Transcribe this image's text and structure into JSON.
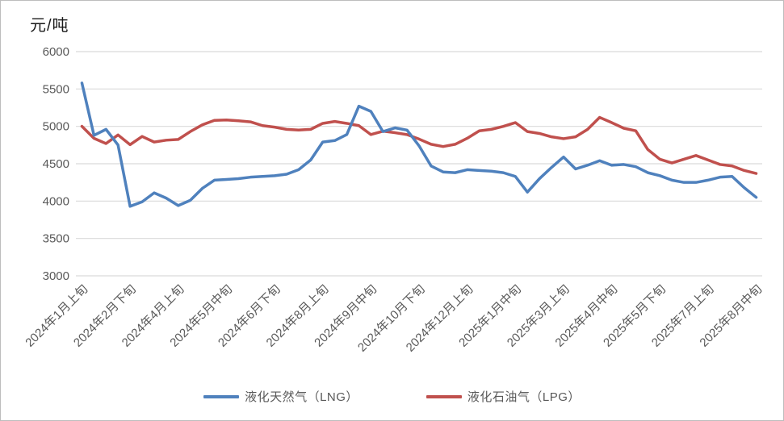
{
  "chart_data": {
    "type": "line",
    "title": "",
    "unit_label": "元/吨",
    "grid": true,
    "legend_position": "bottom",
    "ylim": [
      3000,
      6000
    ],
    "ytick_step": 500,
    "y_tick_labels": [
      "6000",
      "5500",
      "5000",
      "4500",
      "4000",
      "3500",
      "3000"
    ],
    "x_tick_every": 4,
    "x_tick_labels": [
      "2024年1月上旬",
      "2024年2月下旬",
      "2024年4月上旬",
      "2024年5月中旬",
      "2024年6月下旬",
      "2024年8月上旬",
      "2024年9月中旬",
      "2024年10月下旬",
      "2024年12月上旬",
      "2025年1月中旬",
      "2025年3月上旬",
      "2025年4月中旬",
      "2025年5月下旬",
      "2025年7月上旬",
      "2025年8月中旬"
    ],
    "colors": {
      "gridline": "#D9D9D9",
      "axis_text": "#595959",
      "lng_blue": "#4F81BD",
      "lpg_red": "#C0504D"
    },
    "series": [
      {
        "id": "lng",
        "name": "液化天然气（LNG）",
        "color": "#4F81BD",
        "values": [
          5580,
          4880,
          4960,
          4750,
          3930,
          3990,
          4110,
          4040,
          3940,
          4010,
          4170,
          4280,
          4290,
          4300,
          4320,
          4330,
          4340,
          4360,
          4420,
          4550,
          4790,
          4810,
          4890,
          5270,
          5200,
          4930,
          4980,
          4950,
          4740,
          4470,
          4390,
          4380,
          4420,
          4410,
          4400,
          4380,
          4330,
          4120,
          4300,
          4450,
          4590,
          4430,
          4480,
          4540,
          4480,
          4490,
          4460,
          4380,
          4340,
          4280,
          4250,
          4250,
          4280,
          4320,
          4330,
          4180,
          4050
        ]
      },
      {
        "id": "lpg",
        "name": "液化石油气（LPG）",
        "color": "#C0504D",
        "values": [
          5000,
          4840,
          4770,
          4885,
          4755,
          4865,
          4790,
          4815,
          4825,
          4930,
          5020,
          5080,
          5085,
          5075,
          5060,
          5010,
          4990,
          4960,
          4950,
          4960,
          5040,
          5065,
          5040,
          5010,
          4890,
          4935,
          4915,
          4890,
          4830,
          4760,
          4730,
          4760,
          4840,
          4940,
          4960,
          5000,
          5050,
          4930,
          4905,
          4860,
          4835,
          4860,
          4960,
          5120,
          5050,
          4975,
          4940,
          4690,
          4560,
          4510,
          4560,
          4610,
          4550,
          4490,
          4470,
          4410,
          4370
        ]
      }
    ]
  }
}
